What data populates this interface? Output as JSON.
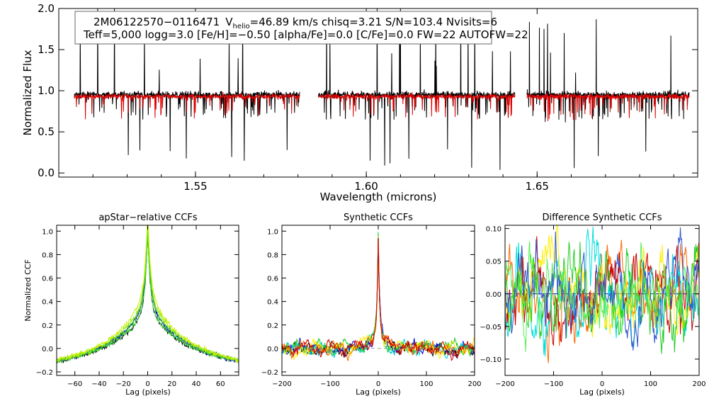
{
  "chart_data": [
    {
      "id": "spectrum",
      "type": "line",
      "xlabel": "Wavelength (microns)",
      "ylabel": "Normalized Flux",
      "xlim": [
        1.51,
        1.697
      ],
      "ylim": [
        -0.05,
        2.0
      ],
      "xticks": [
        "1.55",
        "1.60",
        "1.65"
      ],
      "xtick_values": [
        1.55,
        1.6,
        1.65
      ],
      "yticks": [
        "0.0",
        "0.5",
        "1.0",
        "1.5",
        "2.0"
      ],
      "ytick_values": [
        0.0,
        0.5,
        1.0,
        1.5,
        2.0
      ],
      "annotation_line1": {
        "star_id": "2M06122570−0116471",
        "v_prefix": "V",
        "v_sub": "helio",
        "v_rest": "=46.89 km/s  chisq=3.21  S/N=103.4  Nvisits=6"
      },
      "annotation_line2": "Teff=5,000 logg=3.0 [Fe/H]=−0.50 [alpha/Fe]=0.0 [C/Fe]=0.0 FW=22 AUTOFW=22",
      "chips": [
        [
          1.5145,
          1.5805
        ],
        [
          1.586,
          1.6435
        ],
        [
          1.647,
          1.6945
        ]
      ],
      "series": [
        {
          "name": "observed",
          "color": "#000000",
          "level": 0.95
        },
        {
          "name": "model",
          "color": "#dd0000",
          "level": 0.93
        }
      ]
    },
    {
      "id": "apstar_ccf",
      "type": "line",
      "title": "apStar−relative CCFs",
      "xlabel": "Lag (pixels)",
      "ylabel": "Normalized CCF",
      "xlim": [
        -75,
        75
      ],
      "ylim": [
        -0.23,
        1.05
      ],
      "xticks": [
        "−60",
        "−40",
        "−20",
        "0",
        "20",
        "40",
        "60"
      ],
      "xtick_values": [
        -60,
        -40,
        -20,
        0,
        20,
        40,
        60
      ],
      "yticks": [
        "−0.2",
        "0.0",
        "0.2",
        "0.4",
        "0.6",
        "0.8",
        "1.0"
      ],
      "ytick_values": [
        -0.2,
        0,
        0.2,
        0.4,
        0.6,
        0.8,
        1.0
      ],
      "series": [
        {
          "name": "visit 1",
          "color": "#000000"
        },
        {
          "name": "visit 2",
          "color": "#0000cc"
        },
        {
          "name": "visit 3",
          "color": "#22aa22"
        },
        {
          "name": "visit 4",
          "color": "#44dd44"
        },
        {
          "name": "visit 5",
          "color": "#88ee00"
        },
        {
          "name": "visit 6",
          "color": "#ccee00"
        }
      ]
    },
    {
      "id": "synthetic_ccf",
      "type": "line",
      "title": "Synthetic CCFs",
      "xlabel": "Lag (pixels)",
      "xlim": [
        -200,
        200
      ],
      "ylim": [
        -0.23,
        1.05
      ],
      "xticks": [
        "−200",
        "−100",
        "0",
        "100",
        "200"
      ],
      "xtick_values": [
        -200,
        -100,
        0,
        100,
        200
      ],
      "yticks": [
        "−0.2",
        "0.0",
        "0.2",
        "0.4",
        "0.6",
        "0.8",
        "1.0"
      ],
      "ytick_values": [
        -0.2,
        0,
        0.2,
        0.4,
        0.6,
        0.8,
        1.0
      ],
      "zero_line": true,
      "series": [
        {
          "name": "visit 1",
          "color": "#000000"
        },
        {
          "name": "visit 2",
          "color": "#0000cc"
        },
        {
          "name": "visit 3",
          "color": "#00cccc"
        },
        {
          "name": "visit 4",
          "color": "#22cc22"
        },
        {
          "name": "visit 5",
          "color": "#ffee00"
        },
        {
          "name": "visit 6",
          "color": "#ff6600"
        },
        {
          "name": "visit 7",
          "color": "#cc0000"
        }
      ]
    },
    {
      "id": "difference_ccf",
      "type": "line",
      "title": "Difference Synthetic CCFs",
      "xlabel": "Lag (pixels)",
      "xlim": [
        -200,
        200
      ],
      "ylim": [
        -0.125,
        0.105
      ],
      "xticks": [
        "−200",
        "−100",
        "0",
        "100",
        "200"
      ],
      "xtick_values": [
        -200,
        -100,
        0,
        100,
        200
      ],
      "yticks": [
        "−0.10",
        "−0.05",
        "0.00",
        "0.05",
        "0.10"
      ],
      "ytick_values": [
        -0.1,
        -0.05,
        0.0,
        0.05,
        0.1
      ],
      "baseline_color": "#0000cc",
      "series": [
        {
          "name": "visit 1",
          "color": "#ff6600"
        },
        {
          "name": "visit 2",
          "color": "#cc0000"
        },
        {
          "name": "visit 3",
          "color": "#00dddd"
        },
        {
          "name": "visit 4",
          "color": "#ffee00"
        },
        {
          "name": "visit 5",
          "color": "#22cc22"
        },
        {
          "name": "visit 6",
          "color": "#55ee55"
        },
        {
          "name": "visit 7",
          "color": "#3355cc"
        }
      ]
    }
  ]
}
